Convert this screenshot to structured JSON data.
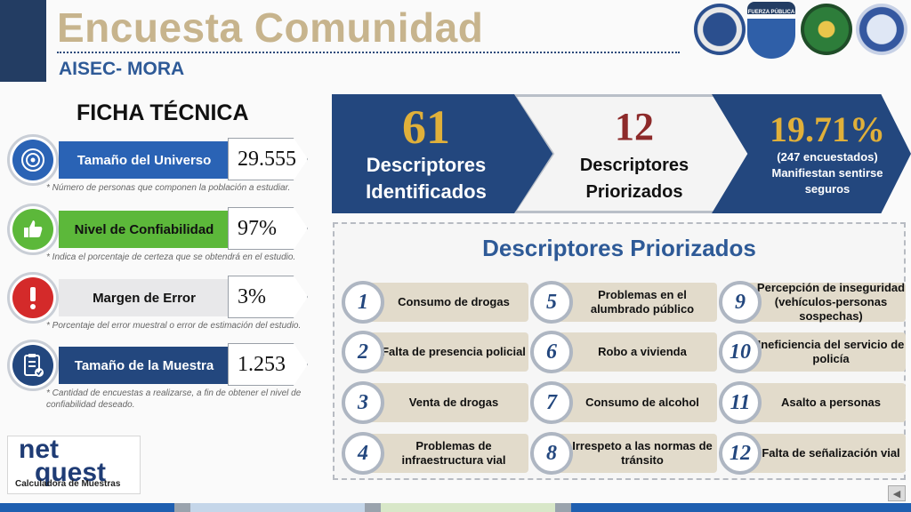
{
  "header": {
    "title": "Encuesta Comunidad",
    "subtitle": "AISEC- MORA",
    "logos": [
      "embassy-seal-logo",
      "fuerza-publica-logo",
      "police-shield-logo",
      "global-logo"
    ],
    "logo_text": {
      "l2": "FUERZA PÚBLICA"
    }
  },
  "ficha": {
    "heading": "FICHA TÉCNICA",
    "rows": [
      {
        "icon": "target-icon",
        "label": "Tamaño del Universo",
        "value": "29.555",
        "note": "* Número de personas que componen la población a estudiar."
      },
      {
        "icon": "thumbs-up-icon",
        "label": "Nivel de Confiabilidad",
        "value": "97%",
        "note": "* Indica el porcentaje de certeza que se obtendrá en el estudio."
      },
      {
        "icon": "alert-icon",
        "label": "Margen de Error",
        "value": "3%",
        "note": "* Porcentaje del error muestral o error de estimación del estudio."
      },
      {
        "icon": "clipboard-check-icon",
        "label": "Tamaño de la Muestra",
        "value": "1.253",
        "note": "* Cantidad de encuestas a realizarse, a fin de obtener el nivel de confiabilidad deseado."
      }
    ]
  },
  "arrows": {
    "identified": {
      "number": "61",
      "line1": "Descriptores",
      "line2": "Identificados"
    },
    "prioritized": {
      "number": "12",
      "line1": "Descriptores",
      "line2": "Priorizados"
    },
    "safe": {
      "percent": "19.71%",
      "line1": "(247 encuestados)",
      "line2": "Manifiestan sentirse",
      "line3": "seguros"
    }
  },
  "panel": {
    "title": "Descriptores Priorizados",
    "items": [
      {
        "n": "1",
        "text": "Consumo de drogas"
      },
      {
        "n": "2",
        "text": "Falta de presencia policial"
      },
      {
        "n": "3",
        "text": "Venta de drogas"
      },
      {
        "n": "4",
        "text": "Problemas de infraestructura vial"
      },
      {
        "n": "5",
        "text": "Problemas en el alumbrado público"
      },
      {
        "n": "6",
        "text": "Robo a vivienda"
      },
      {
        "n": "7",
        "text": "Consumo de alcohol"
      },
      {
        "n": "8",
        "text": "Irrespeto a las normas de tránsito"
      },
      {
        "n": "9",
        "text": "Percepción de inseguridad (vehículos-personas sospechas)"
      },
      {
        "n": "10",
        "text": "Ineficiencia del servicio de policía"
      },
      {
        "n": "11",
        "text": "Asalto a personas"
      },
      {
        "n": "12",
        "text": "Falta de señalización vial"
      }
    ]
  },
  "netquest": {
    "line1": "net",
    "line2": "quest",
    "caption": "Calculadora de Muestras"
  },
  "nav": {
    "back_icon": "back-triangle-icon",
    "glyph": "◀"
  },
  "colors": {
    "navy": "#23477e",
    "gold": "#e0b03a",
    "title_beige": "#c7b48d",
    "blue_text": "#2e5a97",
    "green": "#3aa63a",
    "red": "#d42a2a",
    "maroon": "#8d2a2a"
  }
}
